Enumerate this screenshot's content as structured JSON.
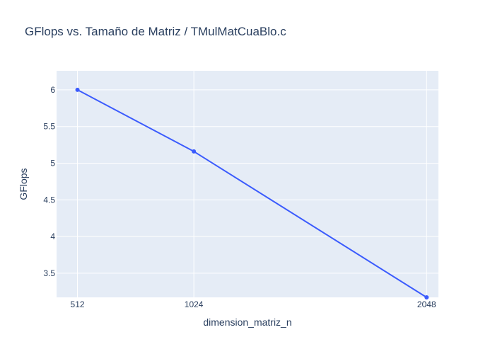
{
  "chart_data": {
    "type": "line",
    "title": "GFlops vs. Tamaño de Matriz / TMulMatCuaBlo.c",
    "xlabel": "dimension_matriz_n",
    "ylabel": "GFlops",
    "x": [
      512,
      1024,
      2048
    ],
    "series": [
      {
        "values": [
          6.0,
          5.16,
          3.17
        ],
        "color": "#3b5bfd"
      }
    ],
    "xticks": [
      512,
      1024,
      2048
    ],
    "yticks": [
      3.5,
      4,
      4.5,
      5,
      5.5,
      6
    ],
    "xlim": [
      420,
      2100
    ],
    "ylim": [
      3.17,
      6.26
    ],
    "grid": true,
    "legend": "none",
    "colors": {
      "plot_background": "#e5ecf6",
      "grid": "#ffffff",
      "text": "#2a3f5f"
    }
  }
}
